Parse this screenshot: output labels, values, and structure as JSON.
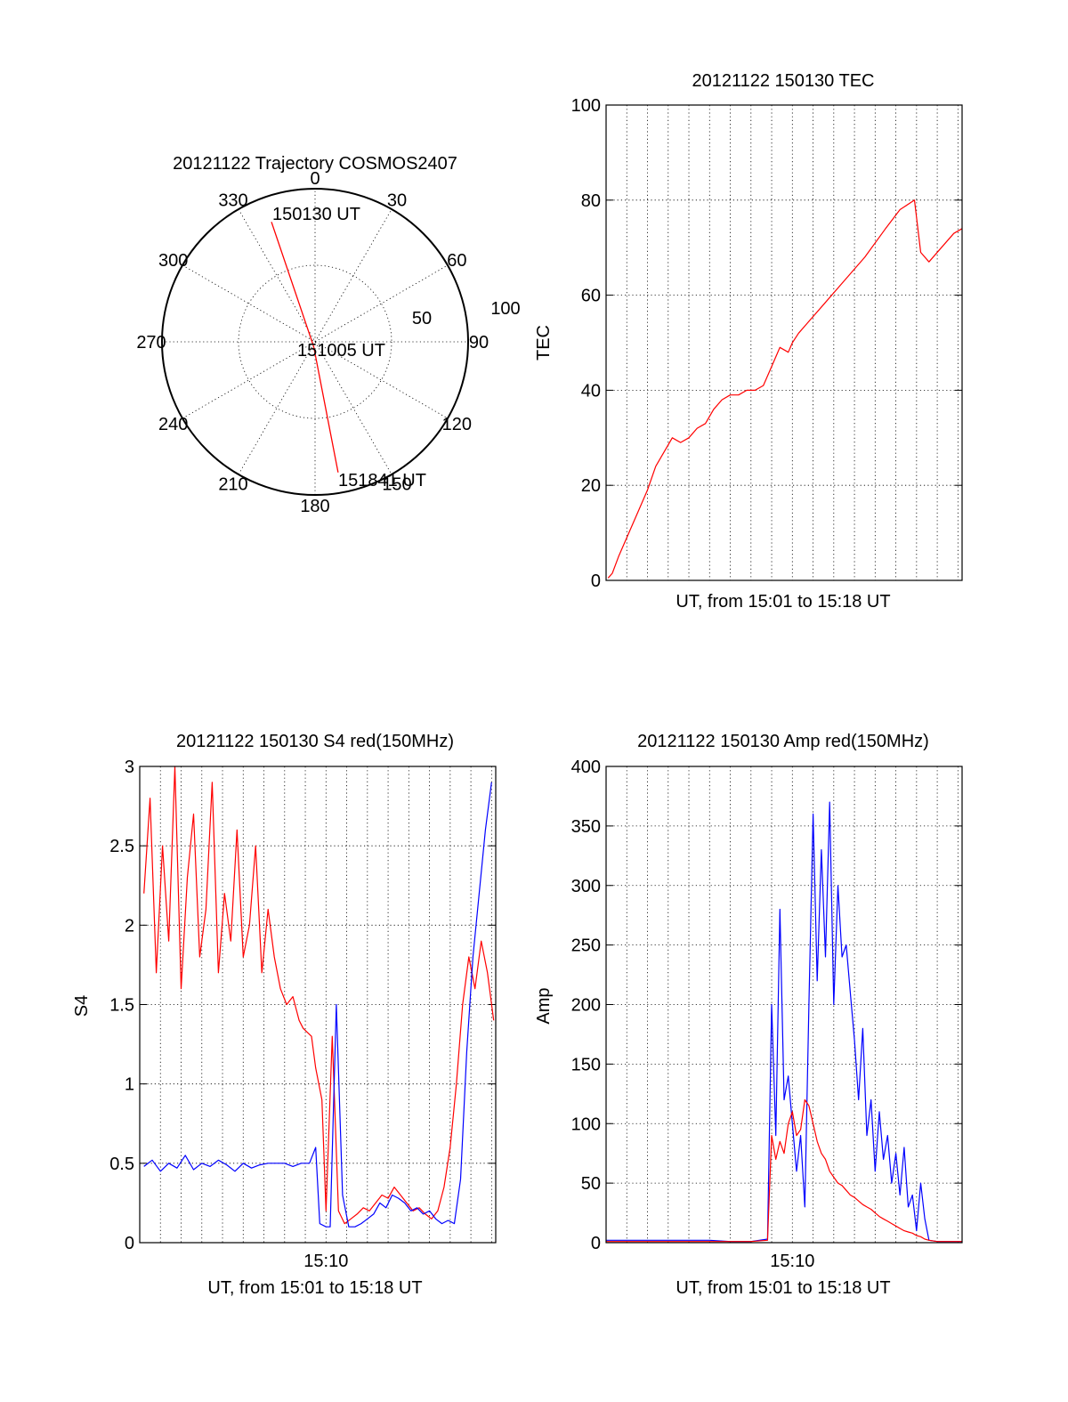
{
  "chart_data": [
    {
      "type": "polar",
      "title": "20121122 Trajectory COSMOS2407",
      "angle_labels": [
        "0",
        "30",
        "60",
        "90",
        "120",
        "150",
        "180",
        "210",
        "240",
        "270",
        "300",
        "330"
      ],
      "radius_labels": [
        "50",
        "100"
      ],
      "track_color": "#ff0000",
      "track": [
        {
          "label": "150130 UT",
          "azimuth": 340,
          "elevation": 15
        },
        {
          "label": "151005 UT",
          "azimuth": 195,
          "elevation": 87
        },
        {
          "label": "151841 UT",
          "azimuth": 170,
          "elevation": 12
        }
      ]
    },
    {
      "type": "line",
      "title": "20121122 150130 TEC",
      "xlabel": "UT, from 15:01 to 15:18 UT",
      "ylabel": "TEC",
      "xlim": [
        0,
        17.2
      ],
      "ylim": [
        0,
        100
      ],
      "yticks": [
        "0",
        "20",
        "40",
        "60",
        "80",
        "100"
      ],
      "xticks": [],
      "grid": true,
      "series": [
        {
          "color": "#ff0000",
          "x": [
            0.1,
            0.3,
            0.6,
            1.0,
            1.5,
            2.0,
            2.4,
            2.8,
            3.2,
            3.6,
            4.0,
            4.4,
            4.8,
            5.2,
            5.6,
            6.0,
            6.4,
            6.8,
            7.2,
            7.6,
            8.0,
            8.4,
            8.8,
            9.0,
            9.3,
            9.7,
            10.5,
            11.5,
            12.5,
            13.5,
            14.2,
            14.9,
            15.2,
            15.6,
            16.2,
            16.8,
            17.2
          ],
          "y": [
            0.5,
            1.5,
            5,
            9,
            14,
            19,
            24,
            27,
            30,
            29,
            30,
            32,
            33,
            36,
            38,
            39,
            39,
            40,
            40,
            41,
            45,
            49,
            48,
            50,
            52,
            54,
            58,
            63,
            68,
            74,
            78,
            80,
            69,
            67,
            70,
            73,
            74
          ]
        }
      ]
    },
    {
      "type": "line",
      "title": "20121122 150130 S4 red(150MHz)",
      "xlabel": "UT, from 15:01 to 15:18 UT",
      "ylabel": "S4",
      "xlim": [
        0,
        17.2
      ],
      "ylim": [
        0,
        3
      ],
      "yticks": [
        "0",
        "0.5",
        "1",
        "1.5",
        "2",
        "2.5",
        "3"
      ],
      "xticks": [
        {
          "value": 9.0,
          "label": "15:10"
        }
      ],
      "grid": true,
      "series": [
        {
          "color": "#ff0000",
          "x": [
            0.2,
            0.5,
            0.8,
            1.1,
            1.4,
            1.7,
            2.0,
            2.3,
            2.6,
            2.9,
            3.2,
            3.5,
            3.8,
            4.1,
            4.4,
            4.7,
            5.0,
            5.3,
            5.6,
            5.9,
            6.2,
            6.5,
            6.8,
            7.1,
            7.4,
            7.7,
            7.9,
            8.3,
            8.5,
            8.8,
            9.0,
            9.3,
            9.6,
            9.9,
            10.2,
            10.5,
            10.8,
            11.1,
            11.4,
            11.7,
            12.0,
            12.3,
            12.6,
            12.9,
            13.2,
            13.5,
            13.8,
            14.1,
            14.4,
            14.7,
            15.0,
            15.3,
            15.6,
            15.9,
            16.2,
            16.5,
            16.8,
            17.1
          ],
          "y": [
            2.2,
            2.8,
            1.7,
            2.5,
            1.9,
            3.0,
            1.6,
            2.3,
            2.7,
            1.8,
            2.1,
            2.9,
            1.7,
            2.2,
            1.9,
            2.6,
            1.8,
            2.0,
            2.5,
            1.7,
            2.1,
            1.8,
            1.6,
            1.5,
            1.55,
            1.4,
            1.35,
            1.3,
            1.1,
            0.9,
            0.2,
            1.3,
            0.2,
            0.12,
            0.15,
            0.18,
            0.22,
            0.2,
            0.25,
            0.3,
            0.28,
            0.35,
            0.3,
            0.25,
            0.2,
            0.22,
            0.18,
            0.15,
            0.2,
            0.35,
            0.6,
            1.0,
            1.5,
            1.8,
            1.6,
            1.9,
            1.7,
            1.4
          ]
        },
        {
          "color": "#0000ff",
          "x": [
            0.2,
            0.6,
            1.0,
            1.4,
            1.8,
            2.2,
            2.6,
            3.0,
            3.4,
            3.8,
            4.2,
            4.6,
            5.0,
            5.4,
            5.8,
            6.2,
            6.6,
            7.0,
            7.4,
            7.8,
            8.2,
            8.5,
            8.7,
            9.0,
            9.2,
            9.5,
            9.8,
            10.1,
            10.4,
            10.7,
            11.0,
            11.3,
            11.6,
            11.9,
            12.2,
            12.5,
            12.8,
            13.1,
            13.4,
            13.7,
            14.0,
            14.3,
            14.6,
            14.9,
            15.2,
            15.5,
            15.8,
            16.1,
            16.4,
            16.7,
            17.0
          ],
          "y": [
            0.48,
            0.52,
            0.45,
            0.5,
            0.47,
            0.55,
            0.46,
            0.5,
            0.48,
            0.52,
            0.49,
            0.45,
            0.5,
            0.47,
            0.49,
            0.5,
            0.5,
            0.5,
            0.48,
            0.5,
            0.5,
            0.6,
            0.12,
            0.1,
            0.1,
            1.5,
            0.3,
            0.1,
            0.1,
            0.12,
            0.15,
            0.18,
            0.25,
            0.22,
            0.3,
            0.28,
            0.25,
            0.2,
            0.22,
            0.18,
            0.2,
            0.15,
            0.12,
            0.14,
            0.12,
            0.4,
            1.2,
            1.8,
            2.2,
            2.6,
            2.9
          ]
        }
      ]
    },
    {
      "type": "line",
      "title": "20121122 150130 Amp red(150MHz)",
      "xlabel": "UT, from 15:01 to 15:18 UT",
      "ylabel": "Amp",
      "xlim": [
        0,
        17.2
      ],
      "ylim": [
        0,
        400
      ],
      "yticks": [
        "0",
        "50",
        "100",
        "150",
        "200",
        "250",
        "300",
        "350",
        "400"
      ],
      "xticks": [
        {
          "value": 9.0,
          "label": "15:10"
        }
      ],
      "grid": true,
      "series": [
        {
          "color": "#0000ff",
          "x": [
            0.0,
            1.0,
            2.0,
            3.0,
            4.0,
            5.0,
            6.0,
            7.0,
            7.8,
            8.0,
            8.2,
            8.4,
            8.6,
            8.8,
            9.0,
            9.2,
            9.4,
            9.6,
            9.8,
            10.0,
            10.2,
            10.4,
            10.6,
            10.8,
            11.0,
            11.2,
            11.4,
            11.6,
            11.8,
            12.0,
            12.2,
            12.4,
            12.6,
            12.8,
            13.0,
            13.2,
            13.4,
            13.6,
            13.8,
            14.0,
            14.2,
            14.4,
            14.6,
            14.8,
            15.0,
            15.2,
            15.4,
            15.6,
            16.0,
            17.2
          ],
          "y": [
            2,
            2,
            2,
            2,
            2,
            2,
            1,
            1,
            3,
            200,
            90,
            280,
            120,
            140,
            100,
            60,
            90,
            30,
            200,
            360,
            220,
            330,
            240,
            370,
            200,
            300,
            240,
            250,
            210,
            170,
            120,
            180,
            90,
            120,
            60,
            110,
            70,
            90,
            50,
            75,
            40,
            80,
            30,
            40,
            10,
            50,
            20,
            2,
            1,
            1
          ]
        },
        {
          "color": "#ff0000",
          "x": [
            0.0,
            5.0,
            7.0,
            7.8,
            8.0,
            8.2,
            8.4,
            8.6,
            8.8,
            9.0,
            9.2,
            9.4,
            9.6,
            9.8,
            10.0,
            10.2,
            10.4,
            10.6,
            10.8,
            11.0,
            11.2,
            11.4,
            11.6,
            11.8,
            12.0,
            12.2,
            12.4,
            12.6,
            12.8,
            13.0,
            13.2,
            13.4,
            13.6,
            13.8,
            14.0,
            14.2,
            14.4,
            14.6,
            14.8,
            15.0,
            15.2,
            15.4,
            15.6,
            16.0,
            17.2
          ],
          "y": [
            1,
            1,
            1,
            2,
            90,
            70,
            85,
            75,
            100,
            110,
            90,
            95,
            120,
            115,
            100,
            85,
            75,
            70,
            60,
            55,
            50,
            48,
            44,
            40,
            38,
            35,
            32,
            30,
            28,
            25,
            22,
            20,
            18,
            16,
            14,
            12,
            10,
            9,
            8,
            6,
            5,
            3,
            2,
            1,
            1
          ]
        }
      ]
    }
  ]
}
